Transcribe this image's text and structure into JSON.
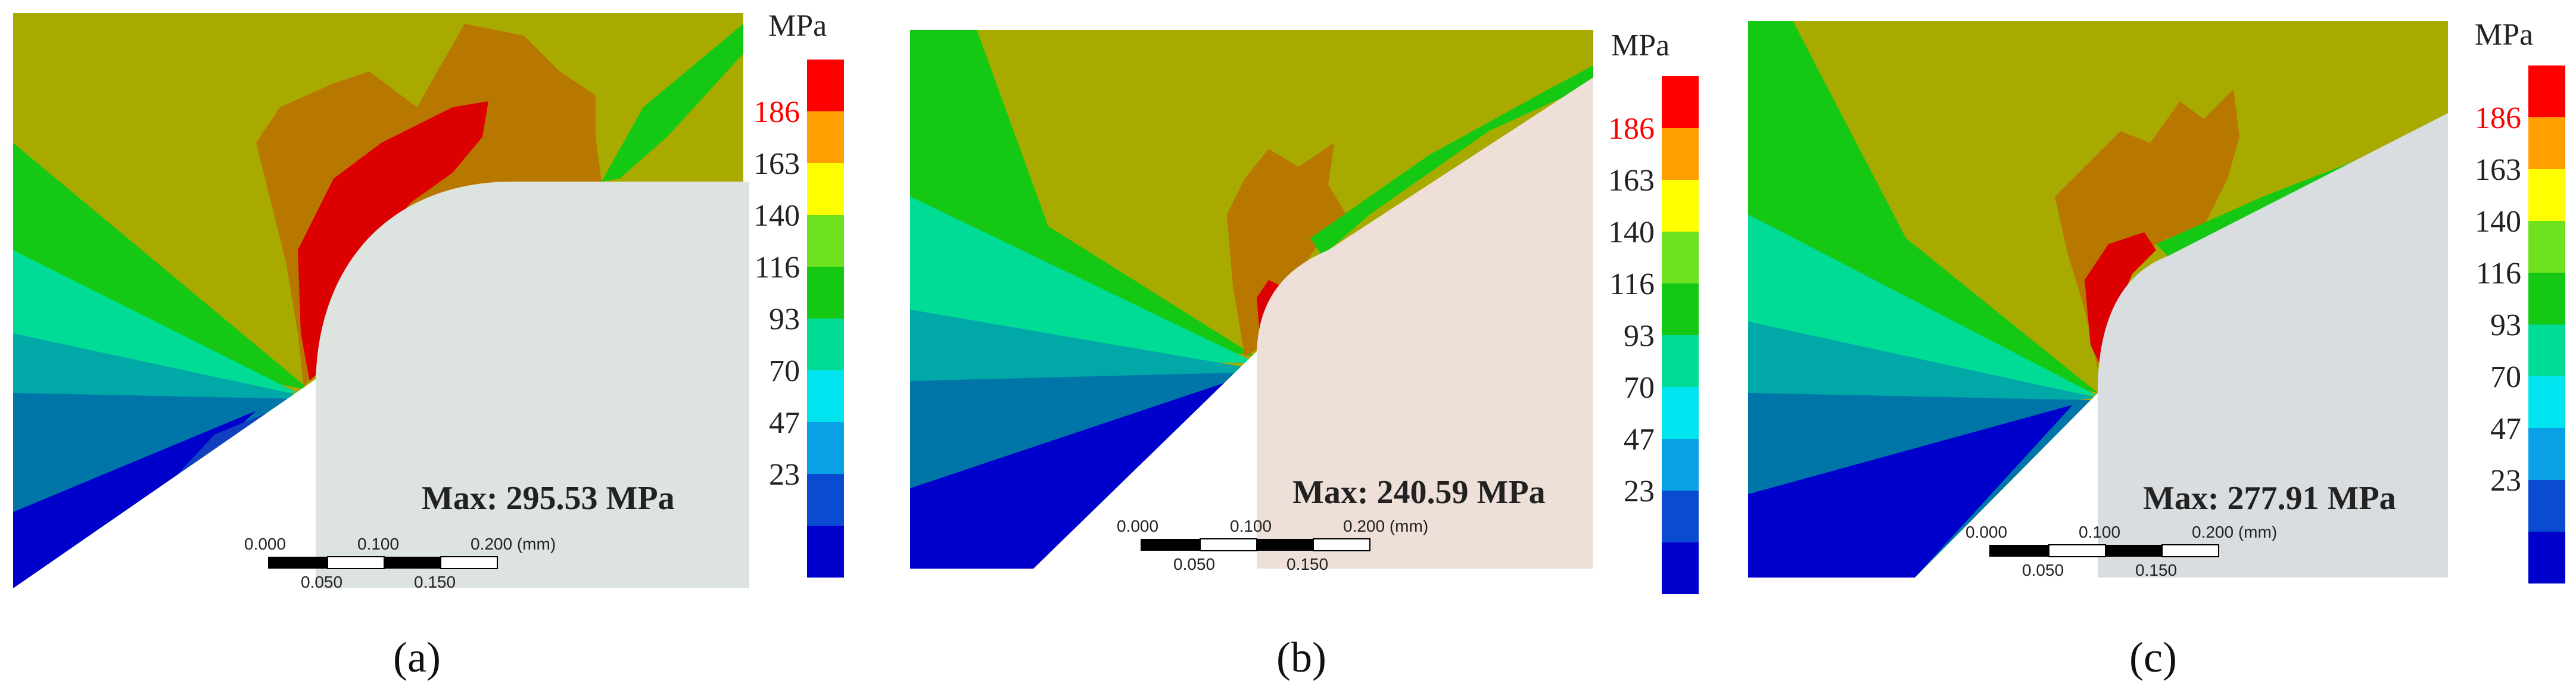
{
  "colors": {
    "band_0": "#0000cd",
    "band_1": "#0a4bd2",
    "band_2": "#0aa0e6",
    "band_3": "#00e4ef",
    "band_4": "#00dc96",
    "band_5": "#14c814",
    "band_6": "#6ee21e",
    "band_7": "#ffff00",
    "band_8": "#ffa000",
    "band_9": "#ff0000",
    "base_olive": "#a8aa00",
    "lobe_brown": "#b87800",
    "peak_red": "#dd0000",
    "tool_a": "#dde3de",
    "tool_b": "#eee0d8",
    "tool_c": "#d9dde0",
    "red_label": "#ff0000"
  },
  "legend": {
    "unit": "MPa",
    "tick_labels": [
      "186",
      "163",
      "140",
      "116",
      "93",
      "70",
      "47",
      "23"
    ]
  },
  "scalebar": {
    "top_labels": [
      "0.000",
      "0.100",
      "0.200 (mm)"
    ],
    "bottom_labels": [
      "0.050",
      "0.150"
    ]
  },
  "panels": [
    {
      "id": "a",
      "caption": "(a)",
      "max_text": "Max: 295.53 MPa"
    },
    {
      "id": "b",
      "caption": "(b)",
      "max_text": "Max: 240.59 MPa"
    },
    {
      "id": "c",
      "caption": "(c)",
      "max_text": "Max: 277.91 MPa"
    }
  ]
}
